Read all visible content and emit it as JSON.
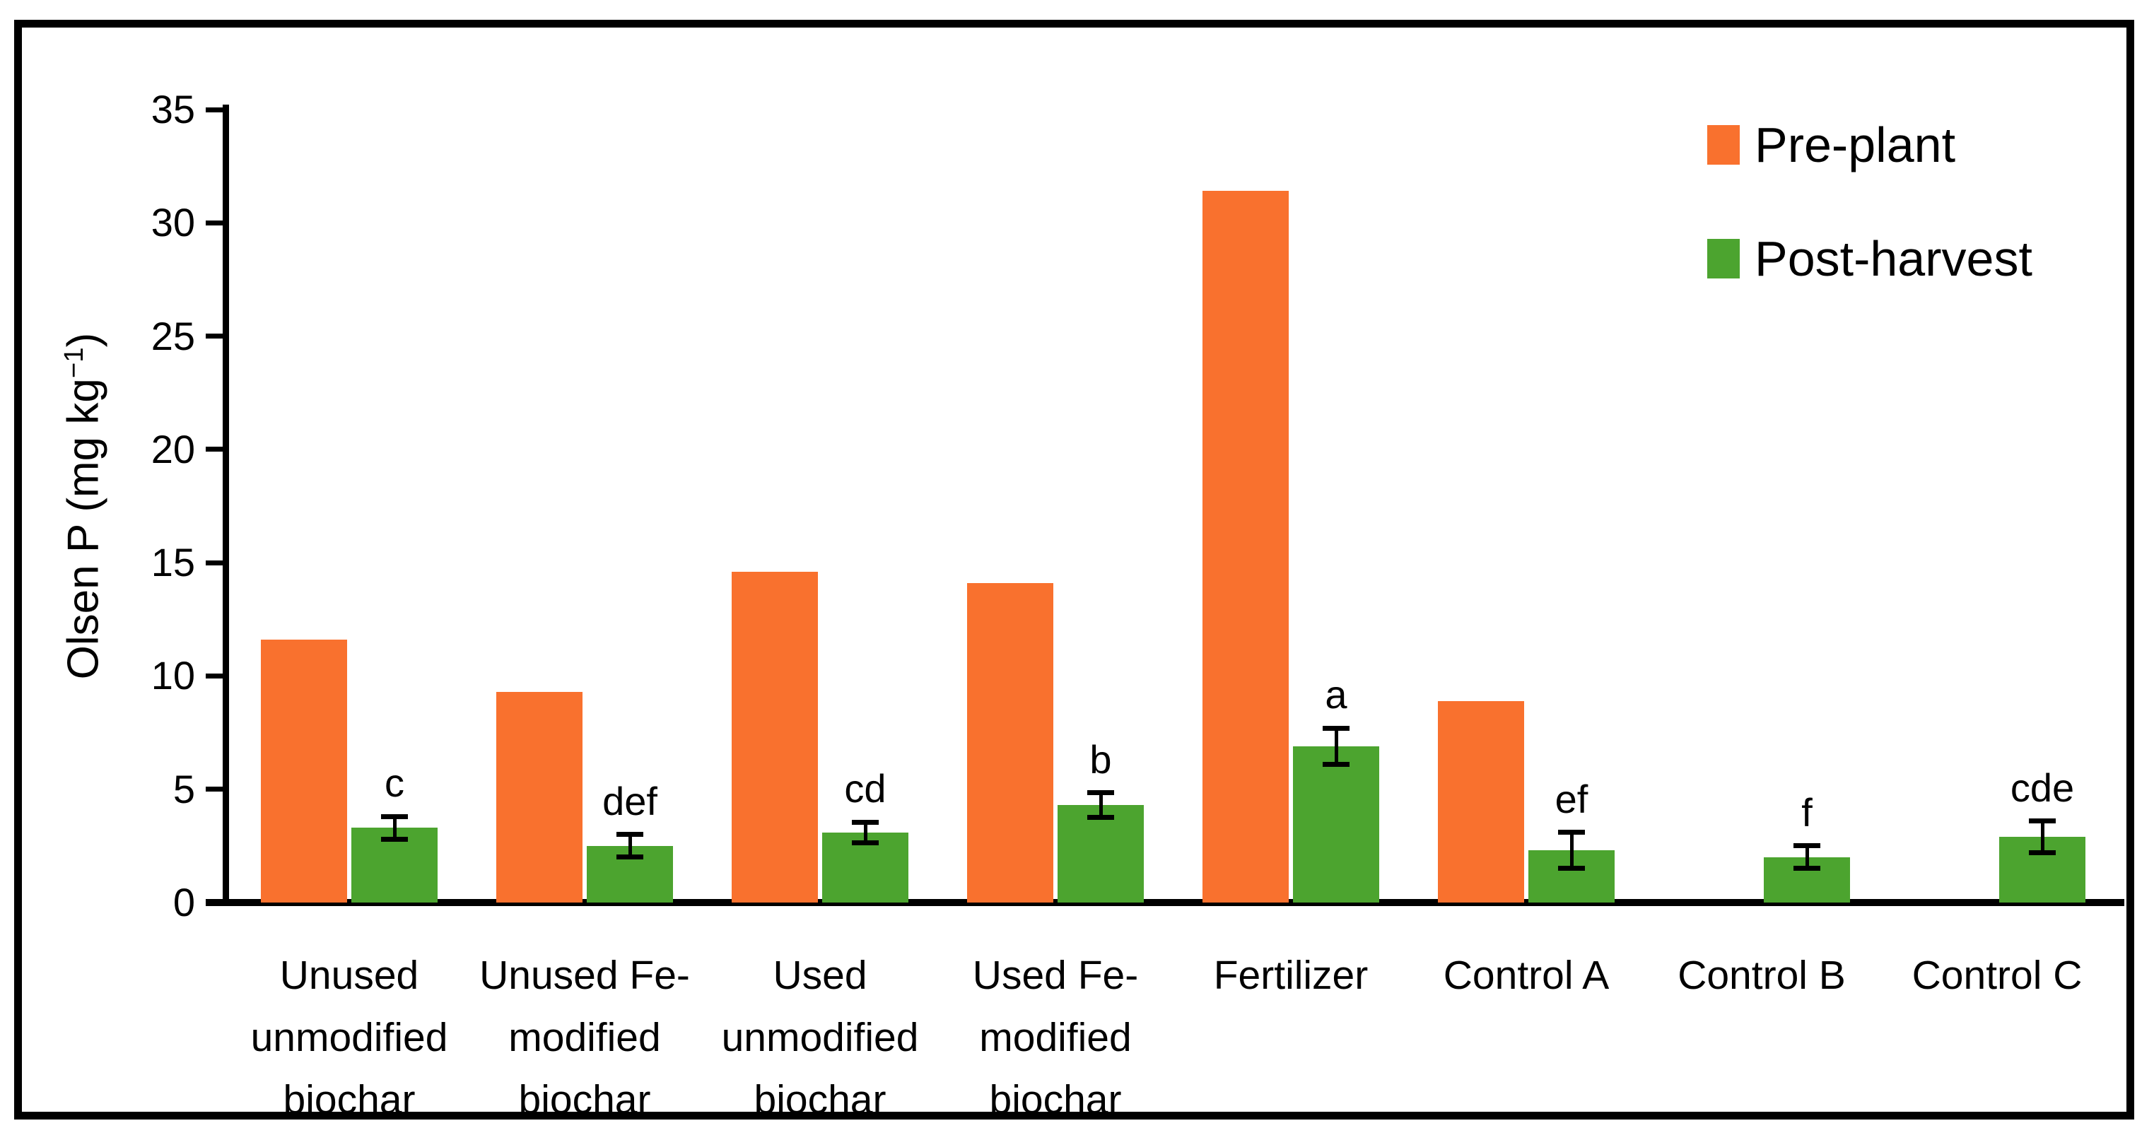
{
  "chart_data": {
    "type": "bar",
    "title": "",
    "xlabel": "",
    "ylabel": "Olsen P (mg kg⁻¹)",
    "ylim": [
      0,
      35
    ],
    "ytick_interval": 5,
    "yticks": [
      0,
      5,
      10,
      15,
      20,
      25,
      30,
      35
    ],
    "grid": false,
    "legend_position": "top-right",
    "categories": [
      "Unused unmodified biochar",
      "Unused Fe-modified biochar",
      "Used unmodified biochar",
      "Used Fe-modified biochar",
      "Fertilizer",
      "Control A",
      "Control B",
      "Control C"
    ],
    "category_label_lines": [
      [
        "Unused",
        "unmodified",
        "biochar"
      ],
      [
        "Unused Fe-",
        "modified",
        "biochar"
      ],
      [
        "Used",
        "unmodified",
        "biochar"
      ],
      [
        "Used Fe-",
        "modified",
        "biochar"
      ],
      [
        "Fertilizer"
      ],
      [
        "Control A"
      ],
      [
        "Control B"
      ],
      [
        "Control C"
      ]
    ],
    "series": [
      {
        "name": "Pre-plant",
        "color": "#F9712E",
        "values": [
          11.6,
          9.3,
          14.6,
          14.1,
          31.4,
          8.9,
          null,
          null
        ]
      },
      {
        "name": "Post-harvest",
        "color": "#4CA42F",
        "values": [
          3.3,
          2.5,
          3.1,
          4.3,
          6.9,
          2.3,
          2.0,
          2.9
        ],
        "error": [
          0.5,
          0.5,
          0.45,
          0.55,
          0.8,
          0.8,
          0.5,
          0.7
        ],
        "sig_letters": [
          "c",
          "def",
          "cd",
          "b",
          "a",
          "ef",
          "f",
          "cde"
        ]
      }
    ],
    "axis_color": "#000000",
    "error_bar_color": "#000000"
  }
}
